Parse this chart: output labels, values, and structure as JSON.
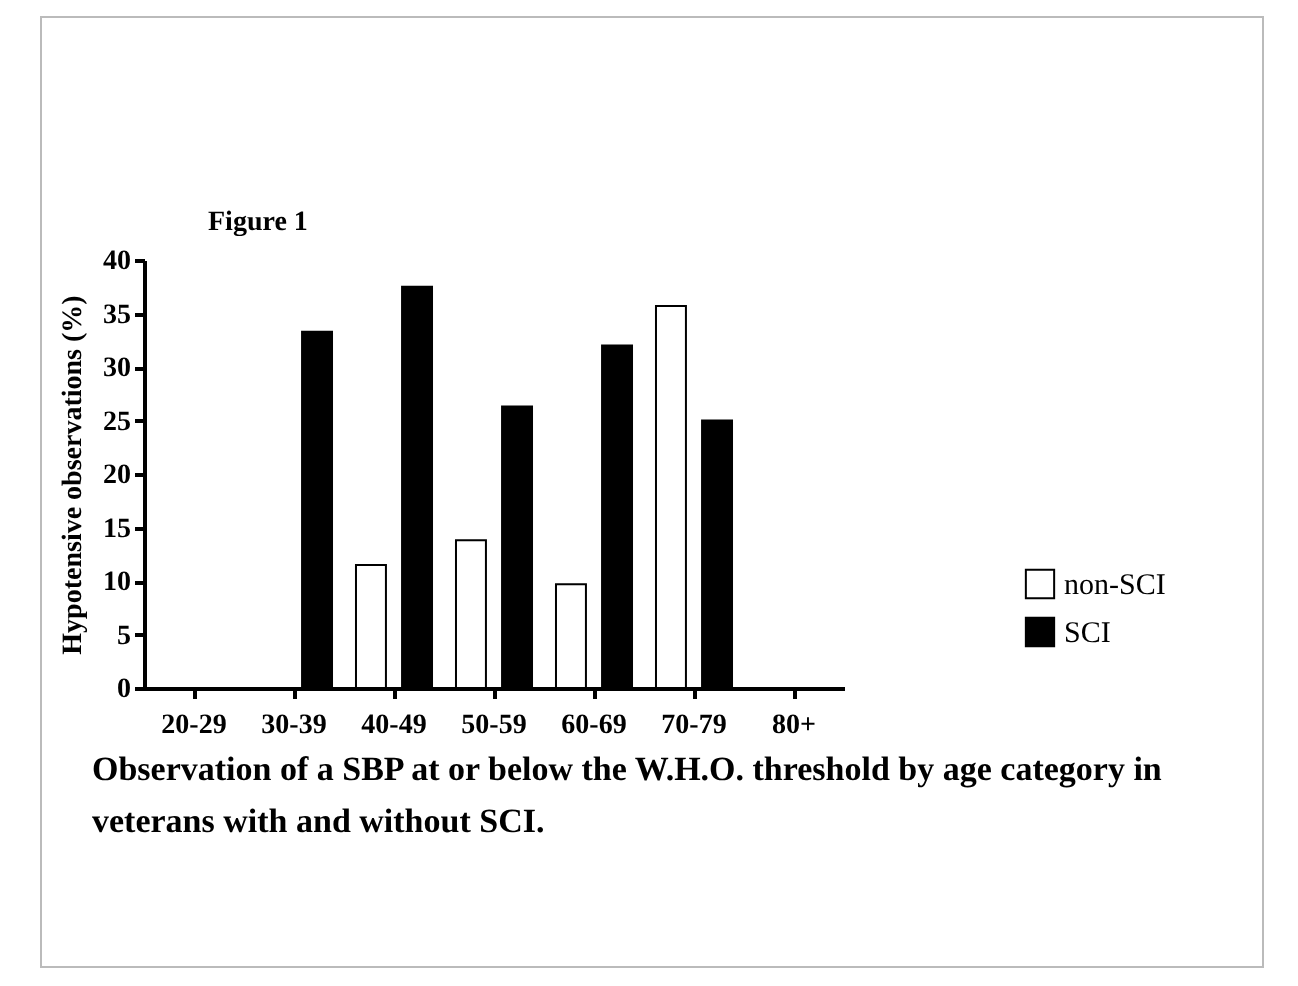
{
  "chart_data": {
    "type": "bar",
    "ylabel": "Hypotensive observations (%)",
    "annotations": [
      "Figure 1",
      "Observation of a SBP at or below the W.H.O. threshold by age category in veterans with and without SCI."
    ],
    "categories": [
      "20-29",
      "30-39",
      "40-49",
      "50-59",
      "60-69",
      "70-79",
      "80+"
    ],
    "series": [
      {
        "name": "non-SCI",
        "color": "#ffffff",
        "values": [
          null,
          null,
          11.5,
          13.8,
          9.7,
          35.7,
          null
        ]
      },
      {
        "name": "SCI",
        "color": "#000000",
        "values": [
          null,
          33.3,
          37.5,
          26.3,
          32,
          25,
          null
        ]
      }
    ],
    "ylim": [
      0,
      40
    ],
    "yticks": [
      0,
      5,
      10,
      15,
      20,
      25,
      30,
      35,
      40
    ],
    "grid": false,
    "legend": "bottom right"
  }
}
